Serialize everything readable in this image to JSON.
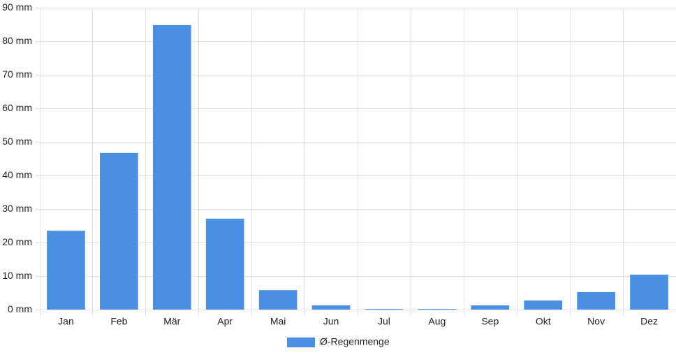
{
  "chart_data": {
    "type": "bar",
    "categories": [
      "Jan",
      "Feb",
      "Mär",
      "Apr",
      "Mai",
      "Jun",
      "Jul",
      "Aug",
      "Sep",
      "Okt",
      "Nov",
      "Dez"
    ],
    "series": [
      {
        "name": "Ø-Regenmenge",
        "color": "#4a90e2",
        "values": [
          23.5,
          46.7,
          84.8,
          27.1,
          5.8,
          1.25,
          0.2,
          0.2,
          1.25,
          2.7,
          5.2,
          10.4
        ]
      }
    ],
    "ylim": [
      0,
      90
    ],
    "yticks": [
      {
        "value": 0,
        "label": "0 mm"
      },
      {
        "value": 10,
        "label": "10 mm"
      },
      {
        "value": 20,
        "label": "20 mm"
      },
      {
        "value": 30,
        "label": "30 mm"
      },
      {
        "value": 40,
        "label": "40 mm"
      },
      {
        "value": 50,
        "label": "50 mm"
      },
      {
        "value": 60,
        "label": "60 mm"
      },
      {
        "value": 70,
        "label": "70 mm"
      },
      {
        "value": 80,
        "label": "80 mm"
      },
      {
        "value": 90,
        "label": "90 mm"
      }
    ],
    "grid": true
  }
}
